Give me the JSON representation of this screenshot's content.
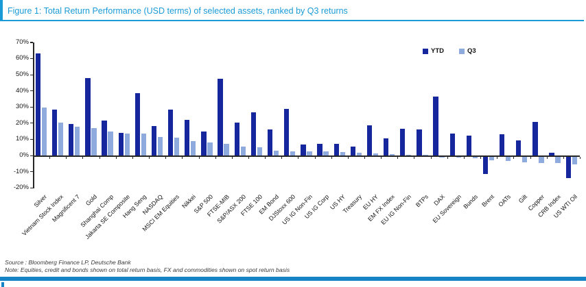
{
  "figure": {
    "title": "Figure 1: Total Return Performance (USD terms) of selected assets, ranked by Q3 returns",
    "source_line": "Source : Bloomberg Finance LP, Deutsche Bank",
    "note_line": "Note: Equities, credit and bonds shown on total return basis, FX and commodities shown on spot return basis"
  },
  "colors": {
    "accent_title": "#1a9bd7",
    "accent_bar": "#1583c5",
    "ytd": "#16279d",
    "q3": "#8faadc",
    "axis": "#262626"
  },
  "legend": {
    "items": [
      "YTD",
      "Q3"
    ],
    "position": "top-right"
  },
  "chart_data": {
    "type": "bar",
    "title": "Total Return Performance (USD terms) of selected assets, ranked by Q3 returns",
    "xlabel": "",
    "ylabel": "",
    "ylim": [
      -20,
      70
    ],
    "y_tick_labels": [
      "70%",
      "60%",
      "50%",
      "40%",
      "30%",
      "20%",
      "10%",
      "0%",
      "-10%",
      "-20%"
    ],
    "grid": false,
    "legend_position": "top-right",
    "categories": [
      "Silver",
      "Vietnam Stock Index",
      "Magnificent 7",
      "Gold",
      "Shanghai Comp",
      "Jakarta SE Composite",
      "Hang Seng",
      "NASDAQ",
      "MSCI EM Equities",
      "Nikkei",
      "S&P 500",
      "FTSE-MIB",
      "S&P/ASX 200",
      "FTSE 100",
      "EM Bond",
      "DJStoxx 600",
      "US IG Non-Fin",
      "US IG Corp",
      "US HY",
      "Treasury",
      "EU HY",
      "EM FX Index",
      "EU IG Non-Fin",
      "BTPs",
      "DAX",
      "EU Sovereign",
      "Bunds",
      "Brent",
      "OATs",
      "Gilt",
      "Copper",
      "CRB Index",
      "US WTI Oil"
    ],
    "series": [
      {
        "name": "YTD",
        "color": "#16279d",
        "values": [
          63,
          28.5,
          19.7,
          48,
          21.7,
          13.8,
          38.5,
          18.4,
          28.5,
          22,
          14.9,
          47.5,
          20.5,
          26.9,
          16.3,
          28.8,
          6.8,
          7.0,
          7.4,
          5.3,
          18.8,
          10.6,
          16.5,
          16.3,
          36.4,
          13.7,
          12.4,
          -11,
          13.1,
          9.2,
          20.9,
          1.8,
          -13.4
        ]
      },
      {
        "name": "Q3",
        "color": "#8faadc",
        "values": [
          29.5,
          20.3,
          17.7,
          17,
          14.7,
          13.6,
          13.4,
          11.3,
          10.9,
          8.8,
          8.2,
          7.1,
          5.4,
          5.1,
          2.9,
          2.7,
          2.5,
          2.4,
          2.1,
          1.7,
          1.1,
          0.7,
          0.5,
          0.2,
          -0.8,
          -0.9,
          -1.1,
          -2.4,
          -2.8,
          -3.8,
          -4.2,
          -4.4,
          -5
        ]
      }
    ]
  }
}
